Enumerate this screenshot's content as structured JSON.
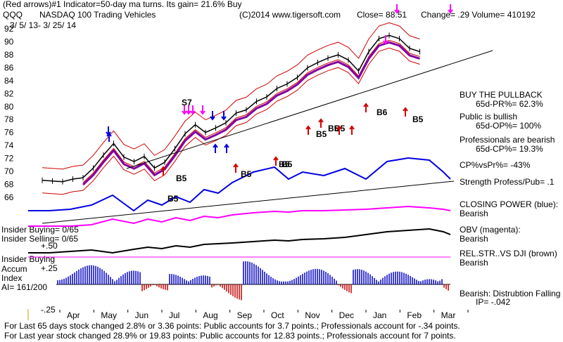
{
  "header": {
    "line1": "(Red arrows)#1 Indicator=50-day ma turns. Its gain= 21.6% Buy",
    "symbol": "QQQ",
    "title": "NASDAQ 100 Trading Vehicles",
    "copyright": "(C)2014 www.tigersoft.com",
    "close": "Close=  88.51",
    "change": "Change= .29 Volume= 410192",
    "daterange": "3/ 5/ 13-  3/ 25/ 14"
  },
  "chart_data": {
    "type": "line",
    "title": "NASDAQ 100 Trading Vehicles",
    "x_labels": [
      "Apr",
      "May",
      "Jun",
      "Jul",
      "Aug",
      "Sep",
      "Oct",
      "Nov",
      "Dec",
      "Jan",
      "Feb",
      "Mar"
    ],
    "price_ticks": [
      92,
      90,
      88,
      86,
      84,
      82,
      80,
      78,
      76,
      74,
      72,
      70,
      68,
      66
    ],
    "accum_ticks": [
      "+.50",
      "+.25",
      "-.25"
    ],
    "price_ylim": [
      65,
      93
    ],
    "price_series": {
      "name": "QQQ",
      "x": [
        0,
        0.3,
        0.6,
        0.9,
        1.2,
        1.5,
        1.8,
        2.1,
        2.4,
        2.7,
        3.0,
        3.3,
        3.6,
        3.9,
        4.2,
        4.5,
        4.8,
        5.1,
        5.4,
        5.7,
        6.0,
        6.3,
        6.6,
        6.9,
        7.2,
        7.5,
        7.8,
        8.1,
        8.4,
        8.7,
        9.0,
        9.3,
        9.6,
        9.9,
        10.2,
        10.5,
        10.8,
        11.1
      ],
      "values": [
        68.6,
        68.5,
        68.4,
        68.8,
        69.0,
        70.5,
        72.5,
        74.3,
        72.2,
        71.5,
        72.3,
        70.5,
        71.4,
        73.5,
        75.8,
        77.2,
        76.0,
        76.7,
        77.5,
        79.0,
        79.5,
        80.8,
        81.5,
        82.8,
        83.5,
        84.5,
        86.0,
        86.8,
        87.5,
        88.0,
        87.2,
        85.5,
        88.5,
        90.5,
        91.0,
        90.5,
        89.0,
        88.5
      ]
    },
    "signals": [
      "S7",
      "B5",
      "B5",
      "B5",
      "B5",
      "B6",
      "B5",
      "B5",
      "B5",
      "B5",
      "B5"
    ],
    "rel_str_label": "Strength Profess/Pub= .1"
  },
  "side": {
    "buy_pullback": "BUY THE PULLBACK",
    "pr": "65d-PR%= 62.3%",
    "public": "Public is bullish",
    "op": "65d-OP%= 100%",
    "prof": "Professionals are bearish",
    "cp": "65d-CP%= 19.3%",
    "cpvspr": "CP%vsPr%= -43%",
    "strength": "Strength Profess/Pub= .1",
    "closing_power": "CLOSING POWER (blue):",
    "bearish1": "Bearish",
    "obv": "OBV (magenta):",
    "bearish2": "Bearish",
    "relstr": "REL.STR..VS DJI (brown)",
    "bearish3": "Bearish",
    "distribution": "Bearish: Distrubtion Falling",
    "ip": "IP= -.042"
  },
  "left": {
    "insider_buying": "Insider Buying= 0/65",
    "insider_selling": "Insider Selling= 0/65",
    "plus50": "+.50",
    "insider_buying2": "Insider Buying",
    "accum": "Accum",
    "plus25": "+.25",
    "index": "Index",
    "ai": "AI= 161/200",
    "minus25": "-.25"
  },
  "footer": {
    "line1": "For Last 65 days stock changed  2.8% or  3.36 points:  Public accounts for  3.7 points.;  Professionals account for -.34 points.",
    "line2": "For Last year stock changed  28.9% or  19.83 points:  Public accounts for  12.83 points.;  Professionals account for  7 points."
  },
  "colors": {
    "price": "#000000",
    "bands": "#d00000",
    "ma": "#8000a0",
    "closing_power": "#0000e0",
    "obv": "#ff00ff",
    "accum_pos": "#0000c0",
    "accum_neg": "#c00000",
    "arrow_buy": "#d00000",
    "arrow_sell": "#ff00ff"
  }
}
